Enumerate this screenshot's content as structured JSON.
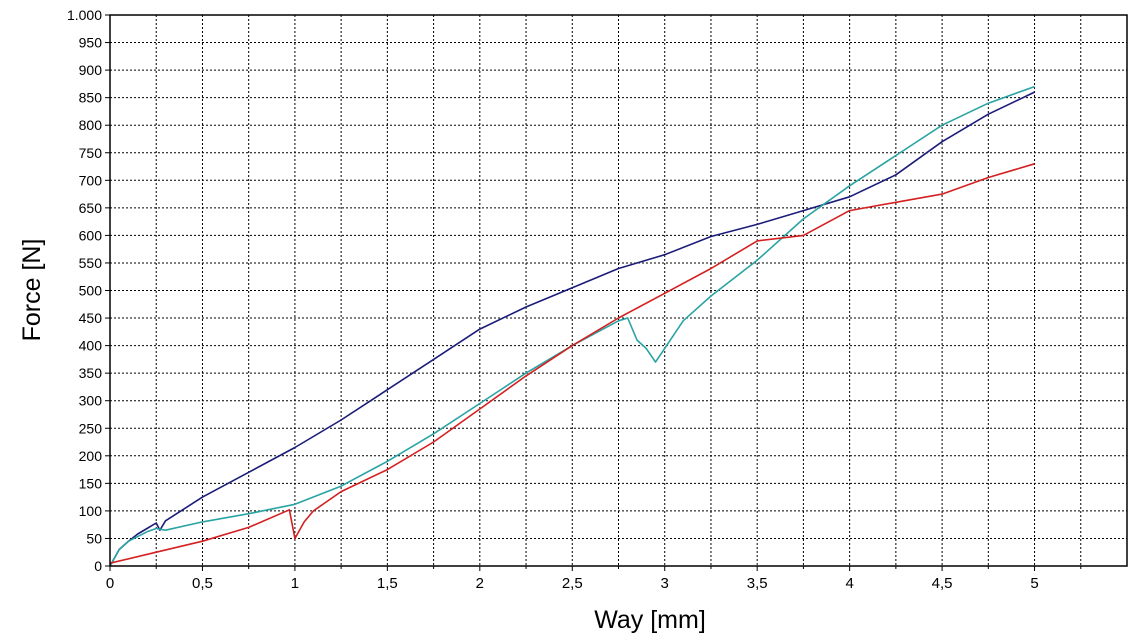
{
  "chart_data": {
    "type": "line",
    "xlabel": "Way [mm]",
    "ylabel": "Force [N]",
    "xlim": [
      0,
      5.5
    ],
    "ylim": [
      0,
      1000
    ],
    "grid": true,
    "x_ticks": [
      0,
      0.5,
      1,
      1.5,
      2,
      2.5,
      3,
      3.5,
      4,
      4.5,
      5
    ],
    "x_tick_labels": [
      "0",
      "0,5",
      "1",
      "1,5",
      "2",
      "2,5",
      "3",
      "3,5",
      "4",
      "4,5",
      "5"
    ],
    "y_ticks": [
      0,
      50,
      100,
      150,
      200,
      250,
      300,
      350,
      400,
      450,
      500,
      550,
      600,
      650,
      700,
      750,
      800,
      850,
      900,
      950,
      1000
    ],
    "y_tick_labels": [
      "0",
      "50",
      "100",
      "150",
      "200",
      "250",
      "300",
      "350",
      "400",
      "450",
      "500",
      "550",
      "600",
      "650",
      "700",
      "750",
      "800",
      "850",
      "900",
      "950",
      "1.000"
    ],
    "series": [
      {
        "color": "#1c1c7a",
        "x": [
          0,
          0.05,
          0.1,
          0.15,
          0.2,
          0.25,
          0.27,
          0.3,
          0.5,
          0.75,
          1,
          1.25,
          1.5,
          1.75,
          2,
          2.25,
          2.5,
          2.75,
          3,
          3.25,
          3.5,
          3.75,
          4,
          4.25,
          4.5,
          4.75,
          5
        ],
        "y": [
          0,
          30,
          45,
          58,
          68,
          78,
          65,
          82,
          125,
          170,
          215,
          265,
          320,
          375,
          430,
          470,
          505,
          540,
          565,
          598,
          620,
          645,
          670,
          710,
          770,
          820,
          860
        ]
      },
      {
        "color": "#2aa3a3",
        "x": [
          0,
          0.05,
          0.1,
          0.2,
          0.25,
          0.3,
          0.5,
          0.75,
          1,
          1.25,
          1.5,
          1.75,
          2,
          2.25,
          2.5,
          2.75,
          2.8,
          2.85,
          2.9,
          2.95,
          3.0,
          3.1,
          3.25,
          3.5,
          3.75,
          4,
          4.25,
          4.5,
          4.75,
          5
        ],
        "y": [
          0,
          30,
          45,
          62,
          68,
          65,
          80,
          95,
          112,
          145,
          190,
          240,
          295,
          350,
          400,
          445,
          450,
          410,
          395,
          370,
          395,
          445,
          490,
          555,
          630,
          690,
          745,
          800,
          840,
          870
        ]
      },
      {
        "color": "#d42020",
        "x": [
          0,
          0.25,
          0.5,
          0.75,
          0.97,
          1.0,
          1.05,
          1.1,
          1.25,
          1.5,
          1.75,
          2,
          2.25,
          2.5,
          2.75,
          3,
          3.25,
          3.5,
          3.75,
          4,
          4.25,
          4.5,
          4.75,
          5
        ],
        "y": [
          5,
          25,
          45,
          70,
          102,
          50,
          80,
          100,
          135,
          175,
          225,
          285,
          345,
          400,
          450,
          495,
          540,
          590,
          600,
          645,
          660,
          675,
          705,
          730
        ]
      }
    ]
  }
}
